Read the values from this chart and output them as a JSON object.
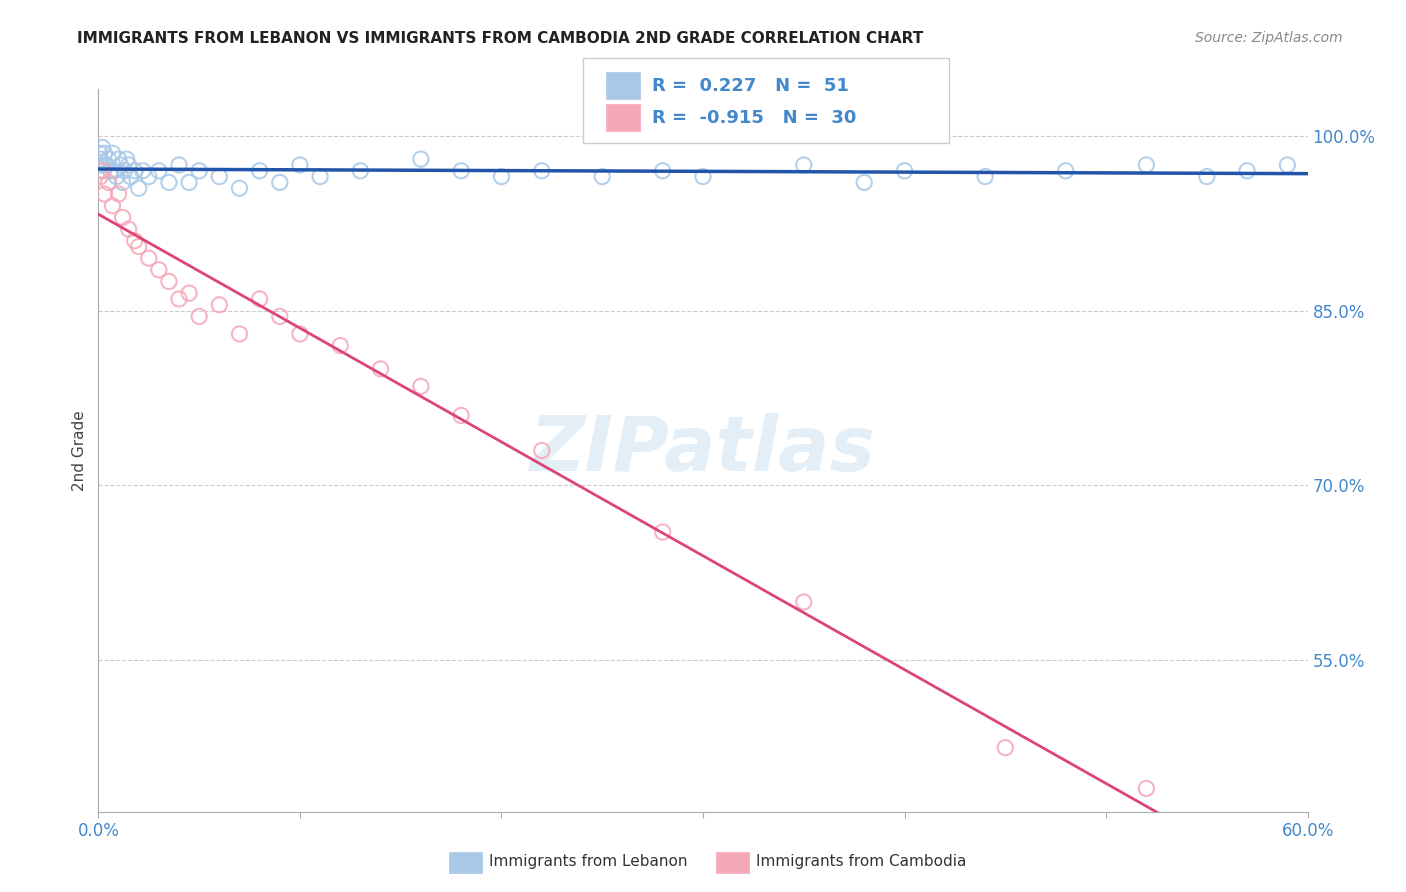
{
  "title": "IMMIGRANTS FROM LEBANON VS IMMIGRANTS FROM CAMBODIA 2ND GRADE CORRELATION CHART",
  "source": "Source: ZipAtlas.com",
  "ylabel": "2nd Grade",
  "y_ticks": [
    55.0,
    70.0,
    85.0,
    100.0
  ],
  "y_tick_labels": [
    "55.0%",
    "70.0%",
    "85.0%",
    "100.0%"
  ],
  "watermark": "ZIPatlas",
  "legend_blue_label": "Immigrants from Lebanon",
  "legend_pink_label": "Immigrants from Cambodia",
  "R_blue": 0.227,
  "N_blue": 51,
  "R_pink": -0.915,
  "N_pink": 30,
  "blue_color": "#a8c8e8",
  "pink_color": "#f4a8b8",
  "blue_line_color": "#2255aa",
  "pink_line_color": "#dd4477",
  "background_color": "#ffffff",
  "xlim": [
    0.0,
    60.0
  ],
  "ylim": [
    42.0,
    104.0
  ],
  "blue_points_x": [
    0.05,
    0.1,
    0.15,
    0.2,
    0.25,
    0.3,
    0.4,
    0.5,
    0.6,
    0.7,
    0.8,
    0.9,
    1.0,
    1.1,
    1.2,
    1.3,
    1.4,
    1.5,
    1.6,
    1.8,
    2.0,
    2.2,
    2.5,
    3.0,
    3.5,
    4.0,
    4.5,
    5.0,
    6.0,
    7.0,
    8.0,
    9.0,
    10.0,
    11.0,
    13.0,
    16.0,
    18.0,
    20.0,
    22.0,
    25.0,
    28.0,
    30.0,
    35.0,
    38.0,
    40.0,
    44.0,
    48.0,
    52.0,
    55.0,
    57.0,
    59.0
  ],
  "blue_points_y": [
    98.5,
    98.0,
    97.5,
    99.0,
    97.0,
    98.5,
    97.5,
    98.0,
    97.0,
    98.5,
    97.0,
    96.5,
    98.0,
    97.5,
    96.0,
    97.0,
    98.0,
    97.5,
    96.5,
    97.0,
    95.5,
    97.0,
    96.5,
    97.0,
    96.0,
    97.5,
    96.0,
    97.0,
    96.5,
    95.5,
    97.0,
    96.0,
    97.5,
    96.5,
    97.0,
    98.0,
    97.0,
    96.5,
    97.0,
    96.5,
    97.0,
    96.5,
    97.5,
    96.0,
    97.0,
    96.5,
    97.0,
    97.5,
    96.5,
    97.0,
    97.5
  ],
  "pink_points_x": [
    0.1,
    0.2,
    0.3,
    0.5,
    0.7,
    1.0,
    1.2,
    1.5,
    1.8,
    2.0,
    2.5,
    3.0,
    3.5,
    4.0,
    4.5,
    5.0,
    6.0,
    7.0,
    8.0,
    9.0,
    10.0,
    12.0,
    14.0,
    16.0,
    18.0,
    22.0,
    28.0,
    35.0,
    45.0,
    52.0
  ],
  "pink_points_y": [
    96.5,
    97.0,
    95.0,
    96.0,
    94.0,
    95.0,
    93.0,
    92.0,
    91.0,
    90.5,
    89.5,
    88.5,
    87.5,
    86.0,
    86.5,
    84.5,
    85.5,
    83.0,
    86.0,
    84.5,
    83.0,
    82.0,
    80.0,
    78.5,
    76.0,
    73.0,
    66.0,
    60.0,
    47.5,
    44.0
  ]
}
